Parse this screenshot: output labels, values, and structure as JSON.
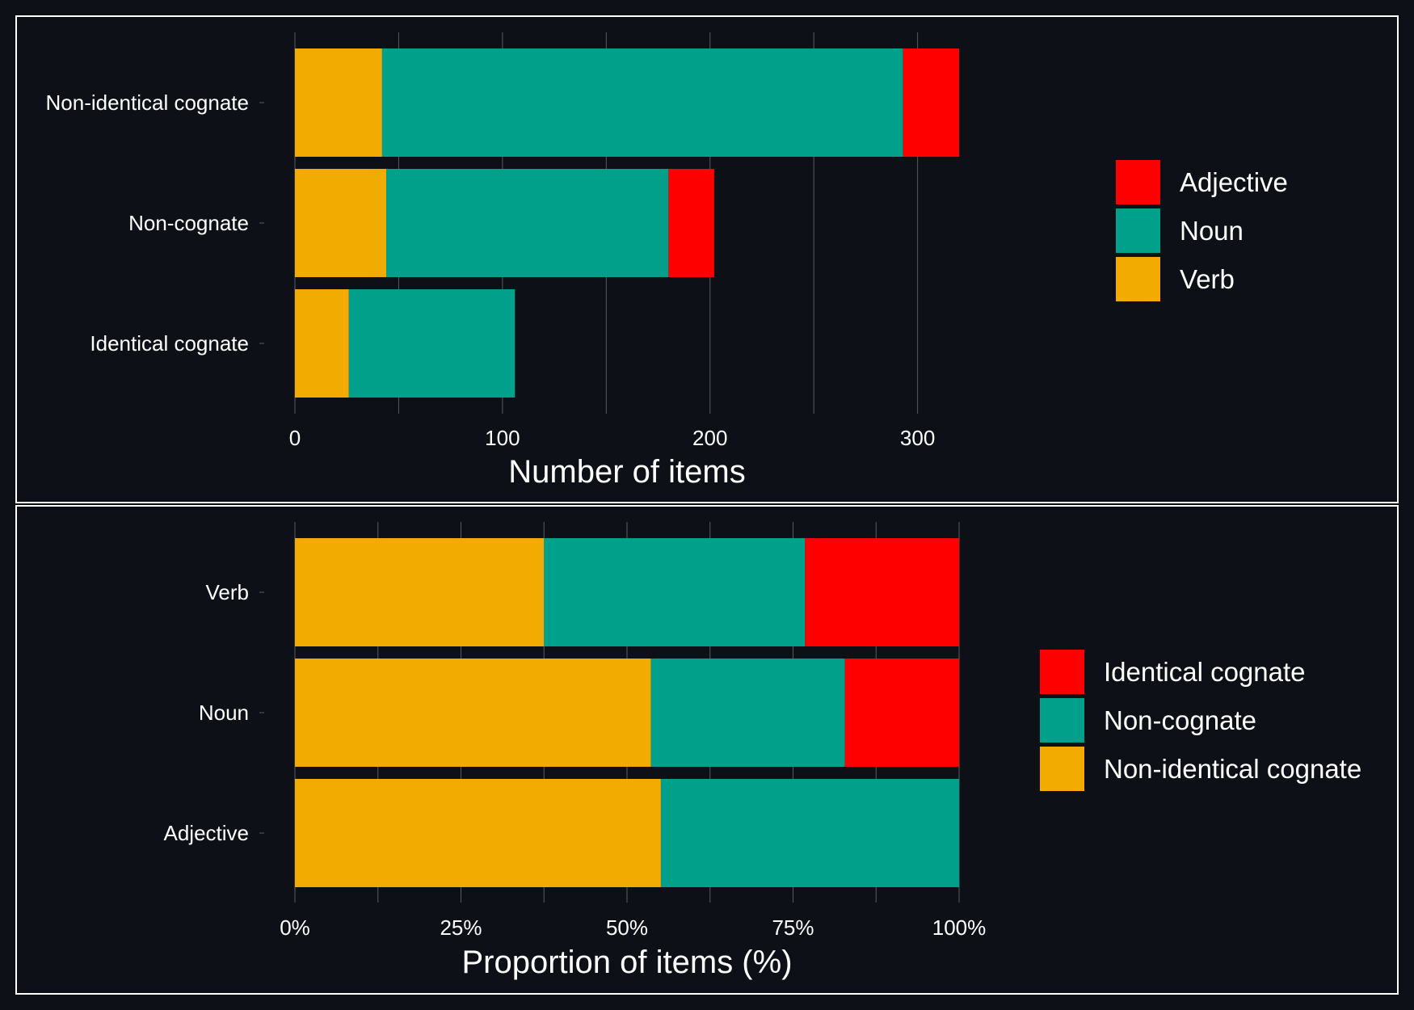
{
  "colors": {
    "background": "#0d1117",
    "panel_border": "#ffffff",
    "gridline": "#5a5a5a",
    "text": "#ffffff",
    "verb": "#f2ab00",
    "noun": "#00a08a",
    "adjective": "#ff0000",
    "non_identical_cognate": "#f2ab00",
    "non_cognate": "#00a08a",
    "identical_cognate": "#ff0000"
  },
  "chart_data": [
    {
      "type": "bar",
      "orientation": "horizontal",
      "stacked": true,
      "categories": [
        "Non-identical cognate",
        "Non-cognate",
        "Identical cognate"
      ],
      "series": [
        {
          "name": "Verb",
          "values": [
            42,
            44,
            26
          ]
        },
        {
          "name": "Noun",
          "values": [
            251,
            136,
            80
          ]
        },
        {
          "name": "Adjective",
          "values": [
            27,
            22,
            0
          ]
        }
      ],
      "xlabel": "Number of items",
      "ylabel": "",
      "xlim": [
        0,
        320
      ],
      "xticks": [
        "0",
        "100",
        "200",
        "300"
      ],
      "xtick_values": [
        0,
        100,
        200,
        300
      ],
      "legend": {
        "position": "right",
        "entries": [
          "Adjective",
          "Noun",
          "Verb"
        ]
      },
      "grid": true
    },
    {
      "type": "bar",
      "orientation": "horizontal",
      "stacked": true,
      "categories": [
        "Verb",
        "Noun",
        "Adjective"
      ],
      "series": [
        {
          "name": "Non-identical cognate",
          "values": [
            37.5,
            53.6,
            55.1
          ]
        },
        {
          "name": "Non-cognate",
          "values": [
            39.3,
            29.2,
            44.9
          ]
        },
        {
          "name": "Identical cognate",
          "values": [
            23.2,
            17.2,
            0
          ]
        }
      ],
      "xlabel": "Proportion of items (%)",
      "ylabel": "",
      "xlim": [
        0,
        100
      ],
      "xticks": [
        "0%",
        "25%",
        "50%",
        "75%",
        "100%"
      ],
      "xtick_values": [
        0,
        25,
        50,
        75,
        100
      ],
      "legend": {
        "position": "right",
        "entries": [
          "Identical cognate",
          "Non-cognate",
          "Non-identical cognate"
        ]
      },
      "grid": true
    }
  ]
}
